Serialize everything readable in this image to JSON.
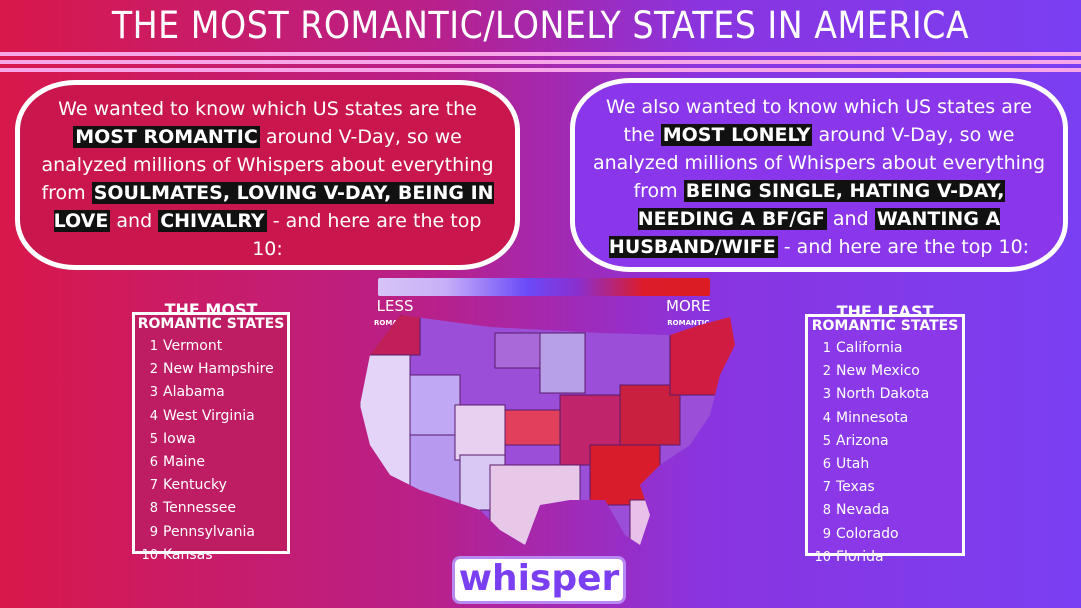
{
  "title": "THE MOST ROMANTIC/LONELY STATES IN AMERICA",
  "left_bubble": {
    "p1": "We wanted to know which US states are the",
    "h1": "MOST ROMANTIC",
    "p2": "around V-Day, so we analyzed millions of Whispers about everything from",
    "h2": "SOULMATES, LOVING V-DAY, BEING IN LOVE",
    "p3": "and",
    "h3": "CHIVALRY",
    "p4": "- and here are the top 10:"
  },
  "right_bubble": {
    "p1": "We also wanted to know which US states are the",
    "h1": "MOST LONELY",
    "p2": "around V-Day, so we analyzed millions of Whispers about everything from",
    "h2": "BEING SINGLE, HATING V-DAY, NEEDING A BF/GF",
    "p3": "and",
    "h3": "WANTING A HUSBAND/WIFE",
    "p4": "- and here are the top 10:"
  },
  "most_romantic": {
    "title_a": "THE MOST",
    "title_b": "ROMANTIC STATES",
    "items": [
      "Vermont",
      "New Hampshire",
      "Alabama",
      "West Virginia",
      "Iowa",
      "Maine",
      "Kentucky",
      "Tennessee",
      "Pennsylvania",
      "Kansas"
    ]
  },
  "least_romantic": {
    "title_a": "THE LEAST",
    "title_b": "ROMANTIC STATES",
    "items": [
      "California",
      "New Mexico",
      "North Dakota",
      "Minnesota",
      "Arizona",
      "Utah",
      "Texas",
      "Nevada",
      "Colorado",
      "Florida"
    ]
  },
  "legend": {
    "less": "LESS",
    "less_sub": "ROMANTIC",
    "more": "MORE",
    "more_sub": "ROMANTIC",
    "colors": [
      "#d6c4f6",
      "#6a4af8",
      "#dc1c22"
    ]
  },
  "logo": "whisper"
}
